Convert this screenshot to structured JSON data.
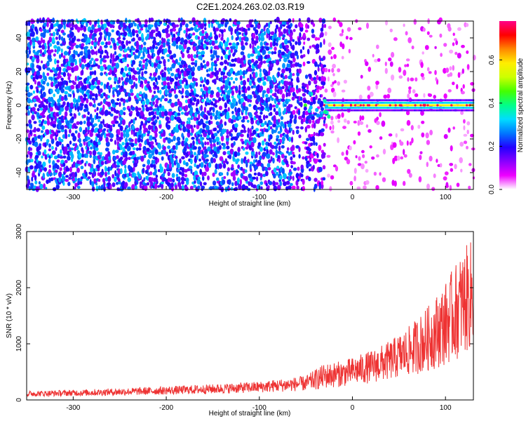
{
  "title": "C2E1.2024.263.02.03.R19",
  "chart_data": [
    {
      "type": "heatmap",
      "xlabel": "Height of straight line (km)",
      "ylabel": "Frequency (Hz)",
      "xlim": [
        -350,
        130
      ],
      "ylim": [
        -50,
        50
      ],
      "xticks": [
        -300,
        -200,
        -100,
        0,
        100
      ],
      "yticks": [
        -40,
        -20,
        0,
        20,
        40
      ],
      "colorbar": {
        "label": "Normalized spectral amplitude",
        "range": [
          0.0,
          0.78
        ],
        "ticks": [
          0.0,
          0.2,
          0.4,
          0.6
        ],
        "colormap": [
          "#ffffff",
          "#ee00ff",
          "#8800ff",
          "#2200ff",
          "#0077ff",
          "#00ddff",
          "#00ff88",
          "#44ff00",
          "#ccff00",
          "#ffee00",
          "#ff8800",
          "#ff0000",
          "#ff0088"
        ]
      },
      "features": {
        "noise_region_x": [
          -350,
          -30
        ],
        "carrier_start_x": -30,
        "carrier_frequency": 0
      }
    },
    {
      "type": "line",
      "xlabel": "Height of straight line (km)",
      "ylabel": "SNR (10 * v/v)",
      "xlim": [
        -350,
        130
      ],
      "ylim": [
        0,
        3000
      ],
      "xticks": [
        -300,
        -200,
        -100,
        0,
        100
      ],
      "yticks": [
        0,
        1000,
        2000,
        3000
      ],
      "series": [
        {
          "color": "#ee3333",
          "x": [
            -350,
            -300,
            -250,
            -200,
            -150,
            -100,
            -50,
            -30,
            -10,
            0,
            20,
            40,
            60,
            80,
            100,
            110,
            120,
            130
          ],
          "y_lower": [
            60,
            70,
            80,
            95,
            110,
            130,
            160,
            200,
            240,
            260,
            300,
            350,
            420,
            500,
            620,
            700,
            800,
            900
          ],
          "y_upper": [
            160,
            180,
            210,
            240,
            280,
            330,
            430,
            650,
            700,
            760,
            880,
            1050,
            1300,
            1650,
            2100,
            2400,
            2700,
            2900
          ]
        }
      ]
    }
  ]
}
